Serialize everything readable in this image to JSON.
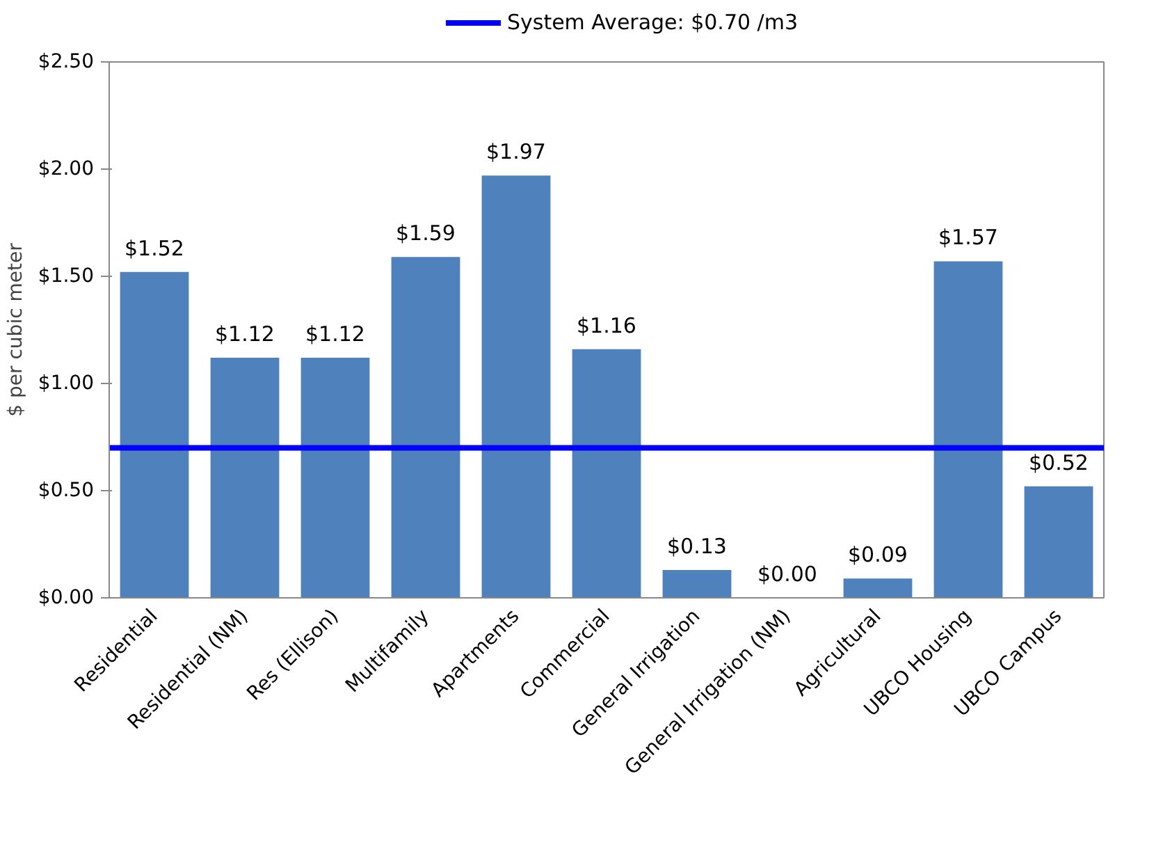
{
  "chart_data": {
    "type": "bar",
    "ylabel": "$ per cubic meter",
    "categories": [
      "Residential",
      "Residential (NM)",
      "Res (Ellison)",
      "Multifamily",
      "Apartments",
      "Commercial",
      "General Irrigation",
      "General Irrigation (NM)",
      "Agricultural",
      "UBCO Housing",
      "UBCO Campus"
    ],
    "values": [
      1.52,
      1.12,
      1.12,
      1.59,
      1.97,
      1.16,
      0.13,
      0.0,
      0.09,
      1.57,
      0.52
    ],
    "value_labels": [
      "$1.52",
      "$1.12",
      "$1.12",
      "$1.59",
      "$1.97",
      "$1.16",
      "$0.13",
      "$0.00",
      "$0.09",
      "$1.57",
      "$0.52"
    ],
    "color": "#4f81bd",
    "ylim": [
      0,
      2.5
    ],
    "yticks": [
      {
        "value": 0,
        "label": "$0.00"
      },
      {
        "value": 0.5,
        "label": "$0.50"
      },
      {
        "value": 1.0,
        "label": "$1.00"
      },
      {
        "value": 1.5,
        "label": "$1.50"
      },
      {
        "value": 2.0,
        "label": "$2.00"
      },
      {
        "value": 2.5,
        "label": "$2.50"
      }
    ],
    "ref_lines": [
      {
        "axis": "y",
        "value": 0.7,
        "label": "System Average: $0.70 /m3",
        "color": "#0000ff"
      }
    ],
    "legend": "top",
    "grid": false
  }
}
